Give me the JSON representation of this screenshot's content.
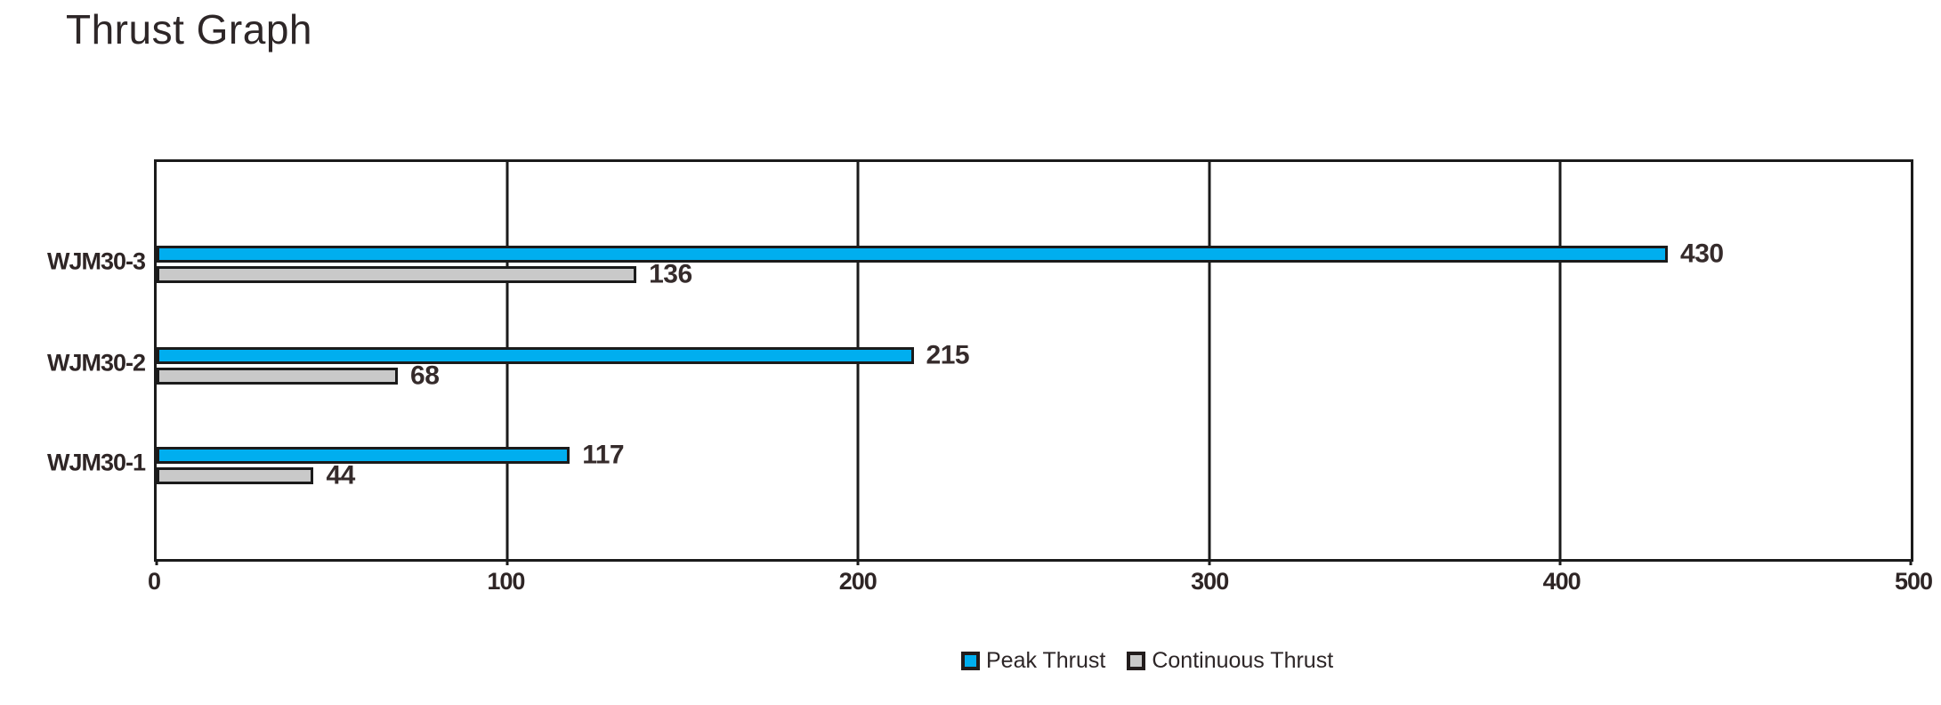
{
  "title": "Thrust Graph",
  "chart_data": {
    "type": "bar",
    "orientation": "horizontal",
    "title": "Thrust Graph",
    "categories": [
      "WJM30-3",
      "WJM30-2",
      "WJM30-1"
    ],
    "series": [
      {
        "name": "Peak Thrust",
        "color": "#00AEEF",
        "values": [
          430,
          215,
          117
        ]
      },
      {
        "name": "Continuous Thrust",
        "color": "#C9C9C9",
        "values": [
          136,
          68,
          44
        ]
      }
    ],
    "value_labels": [
      [
        430,
        215,
        117
      ],
      [
        136,
        68,
        44
      ]
    ],
    "xlabel": "",
    "ylabel": "",
    "xlim": [
      0,
      500
    ],
    "x_ticks": [
      0,
      100,
      200,
      300,
      400,
      500
    ],
    "grid": "vertical-major",
    "bar_outline_color": "#1B1B1B",
    "legend_position": "bottom-center",
    "legend": [
      "Peak Thrust",
      "Continuous Thrust"
    ]
  },
  "colors": {
    "peak_thrust": "#00AEEF",
    "continuous_thrust": "#C9C9C9",
    "outline": "#1B1B1B",
    "text": "#2E2525",
    "background": "#FFFFFF"
  }
}
